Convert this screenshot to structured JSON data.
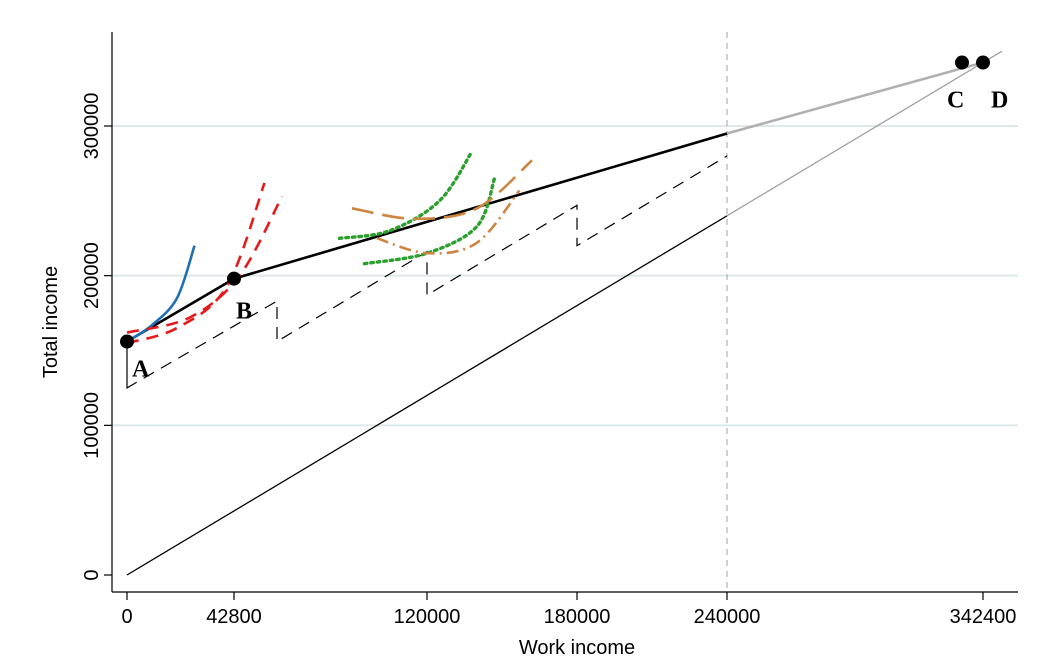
{
  "chart_data": {
    "type": "line",
    "xlabel": "Work income",
    "ylabel": "Total income",
    "xlim": [
      0,
      355000
    ],
    "ylim": [
      0,
      365000
    ],
    "x_ticks": [
      0,
      42800,
      120000,
      180000,
      240000,
      342400
    ],
    "x_tick_labels": [
      "0",
      "42800",
      "120000",
      "180000",
      "240000",
      "342400"
    ],
    "y_ticks": [
      0,
      100000,
      200000,
      300000
    ],
    "y_tick_labels": [
      "0",
      "100000",
      "200000",
      "300000"
    ],
    "grid": "horizontal",
    "vertical_reference_line": {
      "x": 240000,
      "color": "#b0b0b0",
      "style": "dashed"
    },
    "series": [
      {
        "style": "solid",
        "color": "#000000",
        "points": [
          [
            0,
            0
          ],
          [
            240000,
            240000
          ]
        ]
      },
      {
        "style": "solid",
        "color": "#a0a0a0",
        "points": [
          [
            240000,
            240000
          ],
          [
            350000,
            350000
          ]
        ]
      },
      {
        "style": "solid-thick",
        "color": "#000000",
        "points": [
          [
            0,
            156000
          ],
          [
            42800,
            198000
          ],
          [
            240000,
            295000
          ]
        ]
      },
      {
        "style": "solid-thick",
        "color": "#b0b0b0",
        "points": [
          [
            240000,
            295000
          ],
          [
            342400,
            342400
          ]
        ]
      },
      {
        "style": "dashed",
        "color": "#000000",
        "points": [
          [
            0,
            125000
          ],
          [
            0,
            152000
          ],
          [
            0,
            125000
          ],
          [
            60000,
            183000
          ],
          [
            60000,
            156000
          ],
          [
            120000,
            216000
          ],
          [
            120000,
            187000
          ],
          [
            180000,
            247000
          ],
          [
            180000,
            220000
          ],
          [
            240000,
            280000
          ]
        ]
      }
    ],
    "curves": [
      {
        "color": "#1f6fb5",
        "style": "solid",
        "points": [
          [
            0,
            156000
          ],
          [
            10000,
            167000
          ],
          [
            20000,
            185000
          ],
          [
            27000,
            220000
          ]
        ]
      },
      {
        "color": "#e41a1c",
        "style": "dashed",
        "points": [
          [
            0,
            155000
          ],
          [
            20000,
            165000
          ],
          [
            40000,
            193000
          ],
          [
            55000,
            262000
          ]
        ]
      },
      {
        "color": "#e41a1c",
        "style": "dashed",
        "points": [
          [
            0,
            162000
          ],
          [
            25000,
            172000
          ],
          [
            45000,
            200000
          ],
          [
            62000,
            253000
          ]
        ]
      },
      {
        "color": "#2ca02c",
        "style": "dotted",
        "points": [
          [
            85000,
            225000
          ],
          [
            105000,
            230000
          ],
          [
            125000,
            250000
          ],
          [
            138000,
            283000
          ]
        ]
      },
      {
        "color": "#2ca02c",
        "style": "dotted",
        "points": [
          [
            95000,
            208000
          ],
          [
            120000,
            215000
          ],
          [
            140000,
            233000
          ],
          [
            147000,
            265000
          ]
        ]
      },
      {
        "color": "#cd853f",
        "style": "longdash",
        "points": [
          [
            90000,
            245000
          ],
          [
            115000,
            238000
          ],
          [
            140000,
            245000
          ],
          [
            162000,
            277000
          ]
        ]
      },
      {
        "color": "#cd853f",
        "style": "dashdot",
        "points": [
          [
            100000,
            225000
          ],
          [
            120000,
            215000
          ],
          [
            140000,
            222000
          ],
          [
            157000,
            257000
          ]
        ]
      }
    ],
    "points": [
      {
        "label": "A",
        "x": 0,
        "y": 156000
      },
      {
        "label": "B",
        "x": 42800,
        "y": 198000
      },
      {
        "label": "C",
        "x": 334000,
        "y": 342400
      },
      {
        "label": "D",
        "x": 342400,
        "y": 342400
      }
    ],
    "point_label_offsets": {
      "A": [
        5,
        35
      ],
      "B": [
        2,
        40
      ],
      "C": [
        -15,
        45
      ],
      "D": [
        8,
        45
      ]
    }
  }
}
